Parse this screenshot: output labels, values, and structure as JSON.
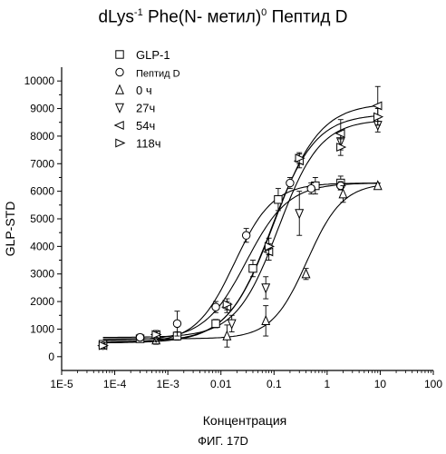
{
  "title": {
    "main_a": "dLys",
    "sup_a": "-1",
    "main_b": " Phe(N- метил)",
    "sup_b": "0",
    "main_c": " Пептид D"
  },
  "caption": "ФИГ. 17D",
  "chart_data": {
    "type": "scatter",
    "xlabel": "Концентрация",
    "ylabel": "GLP-STD",
    "xscale": "log",
    "xlim": [
      1e-05,
      100
    ],
    "ylim": [
      -500,
      10500
    ],
    "xticks": [
      1e-05,
      0.0001,
      0.001,
      0.01,
      0.1,
      1,
      10,
      100
    ],
    "xticklabels": [
      "1E-5",
      "1E-4",
      "1E-3",
      "0.01",
      "0.1",
      "1",
      "10",
      "100"
    ],
    "yticks": [
      0,
      1000,
      2000,
      3000,
      4000,
      5000,
      6000,
      7000,
      8000,
      9000,
      10000
    ],
    "yticklabels": [
      "0",
      "1000",
      "2000",
      "3000",
      "4000",
      "5000",
      "6000",
      "7000",
      "8000",
      "9000",
      "10000"
    ],
    "legend_position": "top-left",
    "series": [
      {
        "name": "GLP-1",
        "marker": "square",
        "x": [
          6e-05,
          0.0003,
          0.0015,
          0.008,
          0.04,
          0.12,
          0.6,
          1.8
        ],
        "y": [
          450,
          650,
          750,
          1200,
          3200,
          5700,
          6200,
          6300
        ],
        "err": [
          80,
          100,
          150,
          150,
          300,
          400,
          300,
          250
        ],
        "fit": {
          "bottom": 600,
          "top": 6300,
          "ec50": 0.03,
          "hill": 1.1
        }
      },
      {
        "name": "Пептид D",
        "marker": "circle",
        "x": [
          6e-05,
          0.0003,
          0.0015,
          0.008,
          0.03,
          0.2,
          0.5,
          1.8
        ],
        "y": [
          400,
          700,
          1200,
          1800,
          4400,
          6300,
          6100,
          6200
        ],
        "err": [
          80,
          120,
          450,
          200,
          250,
          200,
          200,
          150
        ],
        "fit": {
          "bottom": 500,
          "top": 6300,
          "ec50": 0.018,
          "hill": 1.2
        }
      },
      {
        "name": "0 ч",
        "marker": "triangle-up",
        "x": [
          0.0006,
          0.013,
          0.07,
          0.4,
          2.0,
          9.0
        ],
        "y": [
          600,
          750,
          1300,
          3000,
          5900,
          6200
        ],
        "err": [
          150,
          400,
          550,
          200,
          300,
          100
        ],
        "fit": {
          "bottom": 650,
          "top": 6300,
          "ec50": 0.42,
          "hill": 1.3
        }
      },
      {
        "name": "27ч",
        "marker": "triangle-down",
        "x": [
          0.0006,
          0.016,
          0.07,
          0.3,
          1.8,
          9.0
        ],
        "y": [
          700,
          1200,
          2500,
          5200,
          7800,
          8400
        ],
        "err": [
          150,
          300,
          400,
          800,
          300,
          250
        ],
        "fit": {
          "bottom": 700,
          "top": 8600,
          "ec50": 0.12,
          "hill": 1.1
        }
      },
      {
        "name": "54ч",
        "marker": "triangle-left",
        "x": [
          6e-05,
          0.0006,
          0.013,
          0.08,
          0.3,
          1.8,
          9.0
        ],
        "y": [
          400,
          800,
          1800,
          3800,
          7100,
          8100,
          9100
        ],
        "err": [
          80,
          150,
          200,
          300,
          250,
          500,
          700
        ],
        "fit": {
          "bottom": 500,
          "top": 9200,
          "ec50": 0.1,
          "hill": 1.0
        }
      },
      {
        "name": "118ч",
        "marker": "triangle-right",
        "x": [
          6e-05,
          0.0006,
          0.013,
          0.08,
          0.3,
          1.8,
          9.0
        ],
        "y": [
          400,
          800,
          1900,
          4000,
          7200,
          7600,
          8700
        ],
        "err": [
          80,
          150,
          200,
          300,
          200,
          300,
          300
        ],
        "fit": {
          "bottom": 550,
          "top": 8800,
          "ec50": 0.09,
          "hill": 1.05
        }
      }
    ]
  }
}
